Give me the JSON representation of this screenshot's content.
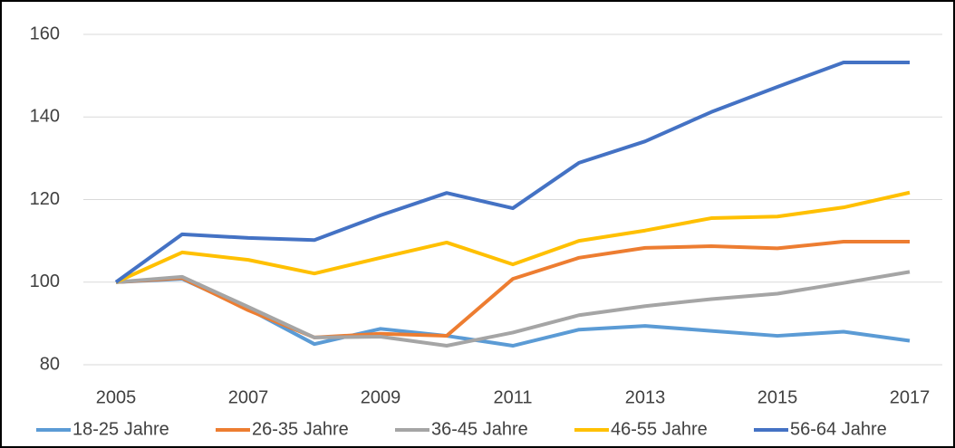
{
  "chart_data": {
    "type": "line",
    "x": [
      2005,
      2006,
      2007,
      2008,
      2009,
      2010,
      2011,
      2012,
      2013,
      2014,
      2015,
      2016,
      2017
    ],
    "series": [
      {
        "name": "18-25 Jahre",
        "color": "#5b9bd5",
        "values": [
          100,
          100.8,
          93.5,
          85,
          88.7,
          87,
          84.6,
          88.5,
          89.4,
          88.2,
          87,
          88,
          85.8
        ]
      },
      {
        "name": "26-35 Jahre",
        "color": "#ed7d31",
        "values": [
          100,
          101,
          93.2,
          86.6,
          87.5,
          87,
          100.8,
          105.9,
          108.3,
          108.7,
          108.2,
          109.8,
          109.8
        ]
      },
      {
        "name": "36-45 Jahre",
        "color": "#a5a5a5",
        "values": [
          100,
          101.3,
          94,
          86.6,
          86.8,
          84.6,
          87.8,
          92,
          94.2,
          95.9,
          97.2,
          99.8,
          102.5
        ]
      },
      {
        "name": "46-55 Jahre",
        "color": "#ffc000",
        "values": [
          100,
          107.2,
          105.4,
          102.1,
          105.9,
          109.6,
          104.3,
          110,
          112.5,
          115.5,
          115.9,
          118.1,
          121.7
        ]
      },
      {
        "name": "56-64 Jahre",
        "color": "#4472c4",
        "values": [
          100,
          111.6,
          110.7,
          110.2,
          116.2,
          121.6,
          117.9,
          128.9,
          134.1,
          141.2,
          147.3,
          153.2,
          153.2
        ]
      }
    ],
    "xlim": [
      2005,
      2017
    ],
    "xticks": [
      2005,
      2007,
      2009,
      2011,
      2013,
      2015,
      2017
    ],
    "ylim": [
      80,
      160
    ],
    "yticks": [
      80,
      100,
      120,
      140,
      160
    ],
    "grid": true,
    "legend": "bottom"
  }
}
